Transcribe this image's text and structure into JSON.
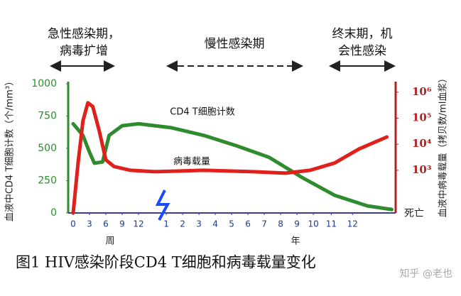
{
  "chart_data": {
    "type": "line",
    "title": "图1 HIV感染阶段CD4 T细胞和病毒载量变化",
    "watermark": "知乎 @老也",
    "ylabel": "血液中CD4 T细胞计数（个/mm³）",
    "y2label": "血液中病毒载量（拷贝数/ml血浆）",
    "phases": [
      {
        "lines": [
          "急性感染期，",
          "病毒扩增"
        ]
      },
      {
        "lines": [
          "慢性感染期"
        ]
      },
      {
        "lines": [
          "终末期，机",
          "会性感染"
        ]
      }
    ],
    "week_label": "周",
    "year_label": "年",
    "death_label": "死亡",
    "xlim": [
      0,
      19.5
    ],
    "xticks": [
      {
        "value": 0,
        "label": "0"
      },
      {
        "value": 1,
        "label": "3"
      },
      {
        "value": 2,
        "label": "6"
      },
      {
        "value": 3,
        "label": "9"
      },
      {
        "value": 4,
        "label": "12"
      },
      {
        "value": 5.7,
        "label": "1"
      },
      {
        "value": 6.7,
        "label": "2"
      },
      {
        "value": 7.7,
        "label": "3"
      },
      {
        "value": 8.7,
        "label": "4"
      },
      {
        "value": 9.7,
        "label": "5"
      },
      {
        "value": 10.7,
        "label": "6"
      },
      {
        "value": 11.7,
        "label": "7"
      },
      {
        "value": 12.7,
        "label": "8"
      },
      {
        "value": 13.7,
        "label": "9"
      },
      {
        "value": 14.7,
        "label": "10"
      },
      {
        "value": 15.8,
        "label": "11"
      },
      {
        "value": 17.1,
        "label": "12"
      }
    ],
    "ylim": [
      0,
      1000
    ],
    "yticks": [
      0,
      250,
      500,
      750,
      1000
    ],
    "y2scale": "log",
    "y2lim": [
      23,
      2100000
    ],
    "y2ticks": [
      {
        "value": 1000,
        "label": "10³"
      },
      {
        "value": 10000,
        "label": "10⁴"
      },
      {
        "value": 100000,
        "label": "10⁵"
      },
      {
        "value": 1000000,
        "label": "10⁶"
      }
    ],
    "series": [
      {
        "name": "CD4 T细胞计数",
        "color": "#2e8b2e",
        "x": [
          0,
          0.6,
          1.0,
          1.3,
          1.8,
          2.2,
          3,
          4,
          6,
          8,
          10,
          12,
          14,
          16,
          18,
          19.5
        ],
        "values": [
          690,
          600,
          470,
          385,
          395,
          600,
          675,
          690,
          660,
          600,
          520,
          430,
          275,
          137,
          55,
          27
        ]
      },
      {
        "name": "病毒载量",
        "color": "#e0201b",
        "axis": "y2",
        "x": [
          0,
          0.3,
          0.6,
          0.9,
          1.2,
          1.6,
          2.0,
          2.5,
          3.5,
          5,
          8,
          11,
          13,
          14.5,
          16,
          17.5,
          19.2
        ],
        "values": [
          23,
          1900,
          80000,
          390000,
          280000,
          32000,
          2500,
          1400,
          1000,
          880,
          1000,
          880,
          780,
          1000,
          1900,
          6600,
          19000
        ]
      }
    ]
  }
}
